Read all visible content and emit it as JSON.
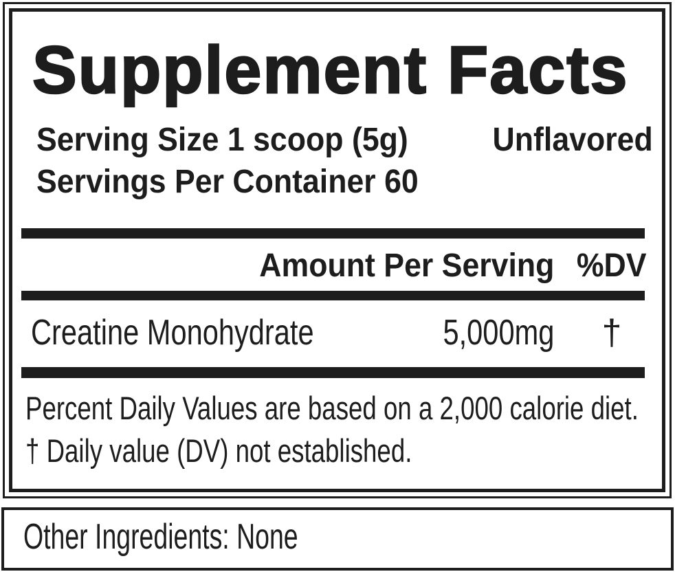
{
  "label": {
    "title": "Supplement Facts",
    "serving_size": "Serving Size 1 scoop (5g)",
    "flavor": "Unflavored",
    "servings_per_container": "Servings Per Container 60",
    "table": {
      "amount_header": "Amount Per Serving",
      "dv_header": "%DV",
      "rows": [
        {
          "name": "Creatine Monohydrate",
          "amount": "5,000mg",
          "dv": "†"
        }
      ]
    },
    "footnotes": [
      "Percent Daily Values are based on a 2,000 calorie diet.",
      "† Daily value (DV) not established."
    ],
    "other_ingredients": "Other Ingredients: None"
  },
  "colors": {
    "ink": "#1d1d1d",
    "background": "#ffffff"
  }
}
